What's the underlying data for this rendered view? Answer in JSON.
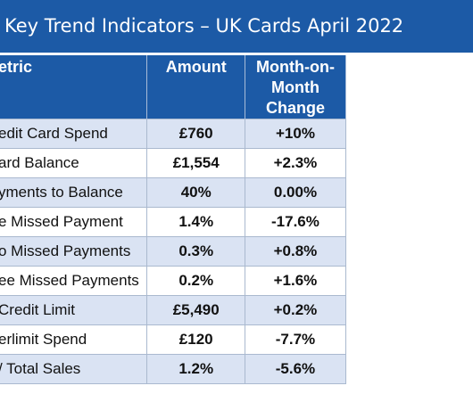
{
  "title": "Key Trend Indicators – UK Cards April 2022",
  "headers": {
    "metric": "etric",
    "amount": "Amount",
    "change_line1": "Month-on-Month",
    "change_line2": "Change"
  },
  "rows": [
    {
      "metric": "edit Card Spend",
      "amount": "£760",
      "change": "+10%"
    },
    {
      "metric": "ard Balance",
      "amount": "£1,554",
      "change": "+2.3%"
    },
    {
      "metric": "yments to Balance",
      "amount": "40%",
      "change": "0.00%"
    },
    {
      "metric": "e Missed Payment",
      "amount": "1.4%",
      "change": "-17.6%"
    },
    {
      "metric": "o Missed Payments",
      "amount": "0.3%",
      "change": "+0.8%"
    },
    {
      "metric": "ee Missed Payments",
      "amount": "0.2%",
      "change": "+1.6%"
    },
    {
      "metric": "Credit Limit",
      "amount": "£5,490",
      "change": "+0.2%"
    },
    {
      "metric": "erlimit Spend",
      "amount": "£120",
      "change": "-7.7%"
    },
    {
      "metric": "/ Total Sales",
      "amount": "1.2%",
      "change": "-5.6%"
    }
  ],
  "colors": {
    "header_bg": "#1c5aa6",
    "band_row_bg": "#dae3f3",
    "plain_row_bg": "#ffffff"
  }
}
